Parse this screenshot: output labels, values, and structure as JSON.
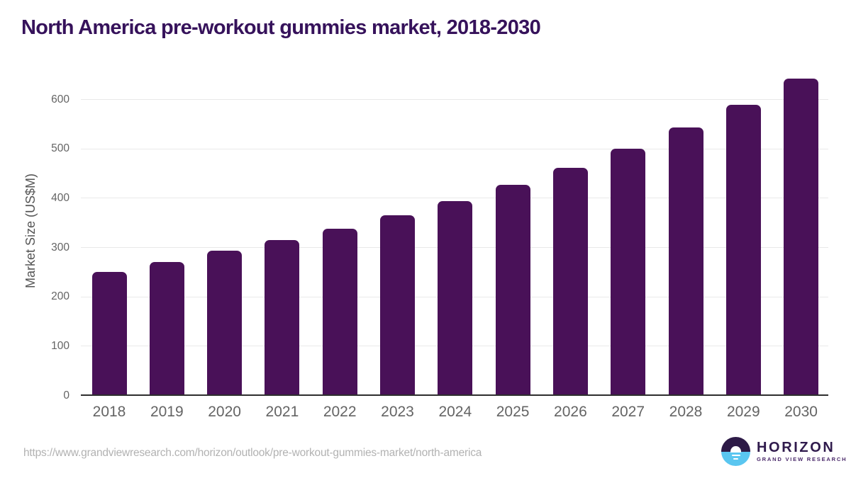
{
  "page": {
    "title": "North America pre-workout gummies market, 2018-2030",
    "source_url": "https://www.grandviewresearch.com/horizon/outlook/pre-workout-gummies-market/north-america"
  },
  "logo": {
    "name": "HORIZON",
    "subtitle": "GRAND VIEW RESEARCH"
  },
  "chart_data": {
    "type": "bar",
    "title": "North America pre-workout gummies market, 2018-2030",
    "categories": [
      "2018",
      "2019",
      "2020",
      "2021",
      "2022",
      "2023",
      "2024",
      "2025",
      "2026",
      "2027",
      "2028",
      "2029",
      "2030"
    ],
    "values": [
      251,
      271,
      293,
      315,
      338,
      365,
      394,
      427,
      461,
      500,
      543,
      590,
      642
    ],
    "xlabel": "",
    "ylabel": "Market Size (US$M)",
    "ylim": [
      0,
      660
    ],
    "yticks": [
      0,
      100,
      200,
      300,
      400,
      500,
      600
    ],
    "grid": true,
    "legend": false,
    "bar_corner_radius": 7
  },
  "colors": {
    "background": "#ffffff",
    "title": "#36125b",
    "bar": "#491158",
    "gridline": "#e9e9e9",
    "axis_line": "#2e2e2e",
    "axis_text": "#646464",
    "ylabel_text": "#555555",
    "footer_text": "#b2b2b2",
    "logo_purple": "#2d1a47",
    "logo_blue": "#5ac6f0",
    "logo_text": "#301b4d",
    "logo_subtext": "#4b2a6b"
  }
}
